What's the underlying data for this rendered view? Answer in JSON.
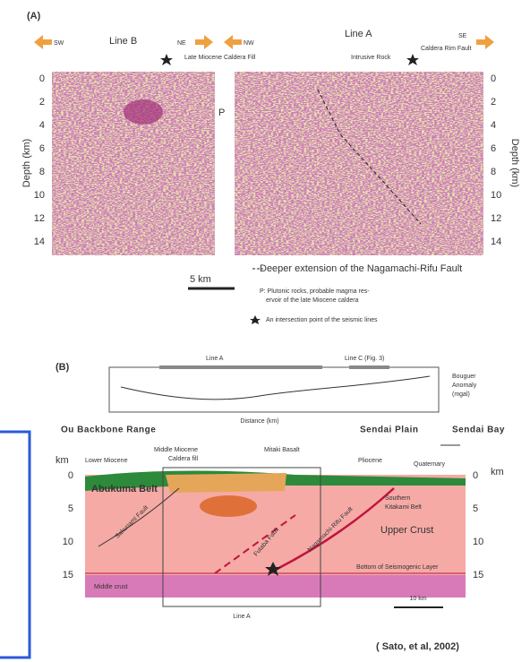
{
  "panel_a": {
    "label": "(A)",
    "line_b": {
      "title": "Line B",
      "left": "SW",
      "right": "NE"
    },
    "line_a": {
      "title": "Line A",
      "left": "NW",
      "right": "SE"
    },
    "annotations": [
      "Late Miocene Caldera Fill",
      "Intrusive Rock",
      "Caldera Rim Fault",
      "P"
    ],
    "y_axis_label": "Depth (km)",
    "depth_ticks": [
      "0",
      "2",
      "4",
      "6",
      "8",
      "10",
      "12",
      "14"
    ],
    "legend": [
      "Deeper extension of the Nagamachi-Rifu Fault",
      "P: Plutonic rocks, probable magma res-",
      "ervoir of the late Miocene caldera",
      "An intersection point of the seismic lines"
    ],
    "scale": "5 km"
  },
  "panel_b": {
    "label": "(B)",
    "gravity": {
      "line_a": "Line A",
      "line_c": "Line C (Fig. 3)",
      "axis_label": [
        "Bouguer",
        "Anomaly",
        "(mgal)"
      ],
      "x_label": "Distance (km)"
    },
    "regions": [
      "Ou Backbone Range",
      "Sendai Plain",
      "Sendai Bay"
    ],
    "units": [
      "Lower Miocene",
      "Middle Miocene",
      "Caldera fill",
      "Mitaki Basalt",
      "Pliocene",
      "Quaternary",
      "Abukuma Belt",
      "Southern",
      "Kitakami Belt",
      "Upper Crust",
      "Bottom of Seismogenic Layer",
      "Middle crust"
    ],
    "faults": [
      "Sakunami Fault",
      "Futaba Fault",
      "Nagamachi-Rifu Fault"
    ],
    "depth_unit": "km",
    "depth_ticks": [
      "0",
      "5",
      "10",
      "15"
    ],
    "line_label": "Line A",
    "scale": "10 km"
  },
  "citation": "( Sato, et al,  2002)"
}
